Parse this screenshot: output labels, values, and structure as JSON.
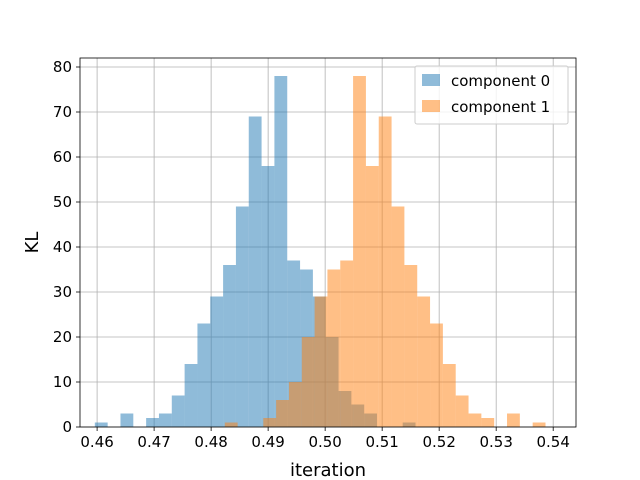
{
  "chart_data": {
    "type": "bar",
    "chart_subtype": "overlaid histogram",
    "title": "",
    "xlabel": "iteration",
    "ylabel": "KL",
    "xlim": [
      0.457,
      0.544
    ],
    "ylim": [
      0,
      82
    ],
    "x_ticks": [
      0.46,
      0.47,
      0.48,
      0.49,
      0.5,
      0.51,
      0.52,
      0.53,
      0.54
    ],
    "x_tick_labels": [
      "0.46",
      "0.47",
      "0.48",
      "0.49",
      "0.50",
      "0.51",
      "0.52",
      "0.53",
      "0.54"
    ],
    "y_ticks": [
      0,
      10,
      20,
      30,
      40,
      50,
      60,
      70,
      80
    ],
    "y_tick_labels": [
      "0",
      "10",
      "20",
      "30",
      "40",
      "50",
      "60",
      "70",
      "80"
    ],
    "grid": true,
    "legend_position": "top-right",
    "series": [
      {
        "name": "component 0",
        "color": "#1f77b4",
        "alpha": 0.5,
        "bin_width": 0.00225,
        "bins": [
          {
            "x0": 0.4596,
            "count": 1
          },
          {
            "x0": 0.46185,
            "count": 0
          },
          {
            "x0": 0.4641,
            "count": 3
          },
          {
            "x0": 0.46635,
            "count": 0
          },
          {
            "x0": 0.4686,
            "count": 2
          },
          {
            "x0": 0.47085,
            "count": 3
          },
          {
            "x0": 0.4731,
            "count": 7
          },
          {
            "x0": 0.47535,
            "count": 14
          },
          {
            "x0": 0.4776,
            "count": 23
          },
          {
            "x0": 0.47985,
            "count": 29
          },
          {
            "x0": 0.4821,
            "count": 36
          },
          {
            "x0": 0.48435,
            "count": 49
          },
          {
            "x0": 0.4866,
            "count": 69
          },
          {
            "x0": 0.48885,
            "count": 58
          },
          {
            "x0": 0.4911,
            "count": 78
          },
          {
            "x0": 0.49335,
            "count": 37
          },
          {
            "x0": 0.4956,
            "count": 35
          },
          {
            "x0": 0.49785,
            "count": 29
          },
          {
            "x0": 0.5001,
            "count": 20
          },
          {
            "x0": 0.50235,
            "count": 8
          },
          {
            "x0": 0.5046,
            "count": 5
          },
          {
            "x0": 0.50685,
            "count": 3
          },
          {
            "x0": 0.5091,
            "count": 0
          },
          {
            "x0": 0.51135,
            "count": 0
          },
          {
            "x0": 0.5136,
            "count": 1
          }
        ]
      },
      {
        "name": "component 1",
        "color": "#ff7f0e",
        "alpha": 0.5,
        "bin_width": 0.00225,
        "bins": [
          {
            "x0": 0.4824,
            "count": 1
          },
          {
            "x0": 0.48465,
            "count": 0
          },
          {
            "x0": 0.4869,
            "count": 0
          },
          {
            "x0": 0.48915,
            "count": 2
          },
          {
            "x0": 0.4914,
            "count": 6
          },
          {
            "x0": 0.49365,
            "count": 10
          },
          {
            "x0": 0.4959,
            "count": 20
          },
          {
            "x0": 0.49815,
            "count": 29
          },
          {
            "x0": 0.5004,
            "count": 35
          },
          {
            "x0": 0.50265,
            "count": 37
          },
          {
            "x0": 0.5049,
            "count": 78
          },
          {
            "x0": 0.50715,
            "count": 58
          },
          {
            "x0": 0.5094,
            "count": 69
          },
          {
            "x0": 0.51165,
            "count": 49
          },
          {
            "x0": 0.5139,
            "count": 36
          },
          {
            "x0": 0.51615,
            "count": 29
          },
          {
            "x0": 0.5184,
            "count": 23
          },
          {
            "x0": 0.52065,
            "count": 14
          },
          {
            "x0": 0.5229,
            "count": 7
          },
          {
            "x0": 0.52515,
            "count": 3
          },
          {
            "x0": 0.5274,
            "count": 2
          },
          {
            "x0": 0.52965,
            "count": 0
          },
          {
            "x0": 0.5319,
            "count": 3
          },
          {
            "x0": 0.53415,
            "count": 0
          },
          {
            "x0": 0.5364,
            "count": 1
          }
        ]
      }
    ]
  }
}
